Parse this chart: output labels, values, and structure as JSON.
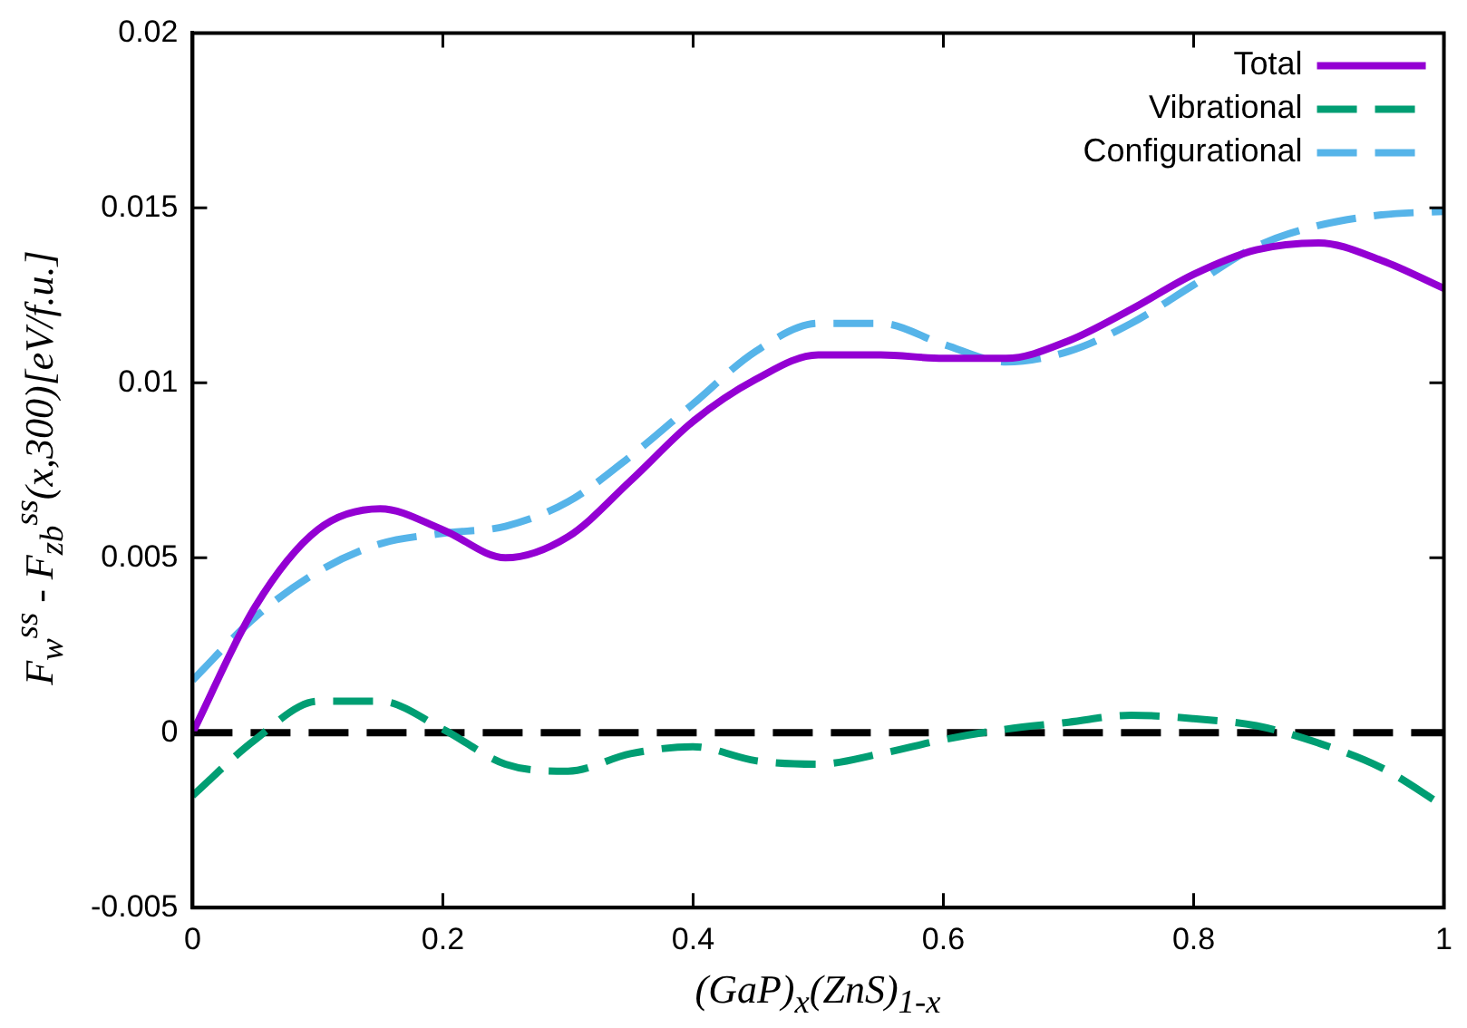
{
  "chart_data": {
    "type": "line",
    "xlabel": "(GaP)$_{x}$(ZnS)$_{1-x}$",
    "ylabel": "F$_{w}$$^{ss}$ - F$_{zb}$$^{ss}$(x,300)[eV/f.u.]",
    "x": [
      0,
      0.05,
      0.1,
      0.15,
      0.2,
      0.25,
      0.3,
      0.35,
      0.4,
      0.45,
      0.5,
      0.55,
      0.6,
      0.65,
      0.7,
      0.75,
      0.8,
      0.85,
      0.9,
      0.95,
      1
    ],
    "series": [
      {
        "name": "Total",
        "color": "#9400d3",
        "line_style": "solid",
        "values": [
          0,
          0.0036,
          0.0058,
          0.0064,
          0.0058,
          0.005,
          0.0056,
          0.0072,
          0.0089,
          0.0101,
          0.0108,
          0.0108,
          0.0107,
          0.0107,
          0.0112,
          0.0121,
          0.0131,
          0.0138,
          0.014,
          0.0135,
          0.0127
        ]
      },
      {
        "name": "Vibrational",
        "color": "#009e73",
        "line_style": "dashed",
        "values": [
          -0.0018,
          -0.0002,
          0.0009,
          0.0009,
          0.0001,
          -0.0009,
          -0.0011,
          -0.0006,
          -0.0004,
          -0.0008,
          -0.0009,
          -0.0006,
          -0.0002,
          0.0001,
          0.0003,
          0.0005,
          0.0004,
          0.0002,
          -0.0003,
          -0.001,
          -0.0021
        ]
      },
      {
        "name": "Configurational",
        "color": "#56b4e9",
        "line_style": "dashed",
        "values": [
          0.0015,
          0.0033,
          0.0046,
          0.0054,
          0.0057,
          0.0059,
          0.0066,
          0.0079,
          0.0094,
          0.0109,
          0.0117,
          0.0117,
          0.0111,
          0.0106,
          0.0109,
          0.0117,
          0.0128,
          0.0139,
          0.0145,
          0.0148,
          0.0149
        ]
      }
    ],
    "xlim": [
      0,
      1
    ],
    "xticks": [
      0,
      0.2,
      0.4,
      0.6,
      0.8,
      1
    ],
    "ylim": [
      -0.005,
      0.02
    ],
    "yticks": [
      -0.005,
      0,
      0.005,
      0.01,
      0.015,
      0.02
    ],
    "ref_lines": [
      {
        "axis": "y",
        "value": 0,
        "color": "#000000",
        "line_style": "dashed"
      }
    ],
    "grid": false,
    "legend": "top right",
    "marker": "none"
  }
}
